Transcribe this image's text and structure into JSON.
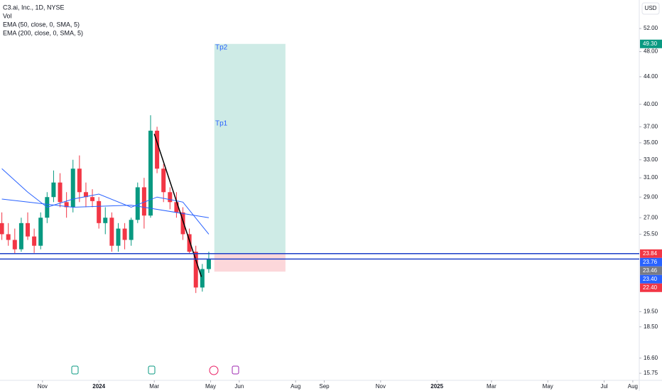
{
  "chart_data": {
    "type": "candlestick",
    "title": "C3.ai, Inc., 1D, NYSE",
    "indicators": [
      "Vol",
      "EMA (50, close, 0, SMA, 5)",
      "EMA (200, close, 0, SMA, 5)"
    ],
    "currency": "USD",
    "log": true,
    "ylim": [
      15.37,
      57.4
    ],
    "yticks": [
      {
        "value": 52,
        "label": "52.00"
      },
      {
        "value": 48,
        "label": "48.00"
      },
      {
        "value": 44,
        "label": "44.00"
      },
      {
        "value": 40,
        "label": "40.00"
      },
      {
        "value": 37,
        "label": "37.00"
      },
      {
        "value": 35,
        "label": "35.00"
      },
      {
        "value": 33,
        "label": "33.00"
      },
      {
        "value": 31,
        "label": "31.00"
      },
      {
        "value": 29,
        "label": "29.00"
      },
      {
        "value": 27,
        "label": "27.00"
      },
      {
        "value": 25.5,
        "label": "25.50"
      },
      {
        "value": 19.5,
        "label": "19.50"
      },
      {
        "value": 18.5,
        "label": "18.50"
      },
      {
        "value": 16.6,
        "label": "16.60"
      },
      {
        "value": 15.75,
        "label": "15.75"
      }
    ],
    "xlim": [
      "2023-09-16",
      "2025-08-08"
    ],
    "xticks": [
      {
        "value": "2023-11-01",
        "label": "Nov"
      },
      {
        "value": "2024-01-01",
        "label": "2024"
      },
      {
        "value": "2024-03-01",
        "label": "Mar"
      },
      {
        "value": "2024-05-01",
        "label": "May"
      },
      {
        "value": "2024-06-01",
        "label": "Jun"
      },
      {
        "value": "2024-08-01",
        "label": "Aug"
      },
      {
        "value": "2024-09-01",
        "label": "Sep"
      },
      {
        "value": "2024-11-01",
        "label": "Nov"
      },
      {
        "value": "2025-01-01",
        "label": "2025"
      },
      {
        "value": "2025-03-01",
        "label": "Mar"
      },
      {
        "value": "2025-05-01",
        "label": "May"
      },
      {
        "value": "2025-07-01",
        "label": "Jul"
      },
      {
        "value": "2025-08-01",
        "label": "Aug"
      }
    ],
    "up_color": "#089981",
    "down_color": "#f23645",
    "x": [
      "2023-09-18",
      "2023-09-25",
      "2023-10-02",
      "2023-10-09",
      "2023-10-16",
      "2023-10-23",
      "2023-10-30",
      "2023-11-06",
      "2023-11-13",
      "2023-11-20",
      "2023-11-27",
      "2023-12-04",
      "2023-12-11",
      "2023-12-18",
      "2023-12-25",
      "2024-01-01",
      "2024-01-08",
      "2024-01-15",
      "2024-01-22",
      "2024-01-29",
      "2024-02-05",
      "2024-02-12",
      "2024-02-19",
      "2024-02-26",
      "2024-03-04",
      "2024-03-11",
      "2024-03-18",
      "2024-03-25",
      "2024-04-01",
      "2024-04-08",
      "2024-04-15",
      "2024-04-22",
      "2024-04-29"
    ],
    "open": [
      26.5,
      25.5,
      25.0,
      24.2,
      26.5,
      25.3,
      24.5,
      27.0,
      29.0,
      30.5,
      28.5,
      28.0,
      32.0,
      29.5,
      29.0,
      28.6,
      26.5,
      27.0,
      24.5,
      26.0,
      25.0,
      26.8,
      30.0,
      27.2,
      36.5,
      32.0,
      29.5,
      28.5,
      27.5,
      25.5,
      24.0,
      21.2,
      22.6
    ],
    "high": [
      27.5,
      26.5,
      26.0,
      27.0,
      27.5,
      26.0,
      27.5,
      29.5,
      31.8,
      31.5,
      29.5,
      33.0,
      33.5,
      30.5,
      29.8,
      29.0,
      28.0,
      27.5,
      26.5,
      26.5,
      27.0,
      30.5,
      31.0,
      38.5,
      37.0,
      32.5,
      30.0,
      29.5,
      28.0,
      26.0,
      24.5,
      23.0,
      24.0
    ],
    "low": [
      25.0,
      24.5,
      23.8,
      24.0,
      25.0,
      23.9,
      24.2,
      26.5,
      28.5,
      28.0,
      27.0,
      27.5,
      28.5,
      28.0,
      28.0,
      26.0,
      25.5,
      24.0,
      24.0,
      24.2,
      24.5,
      26.5,
      26.0,
      27.0,
      31.5,
      28.5,
      27.8,
      27.0,
      25.0,
      23.8,
      20.8,
      20.9,
      22.3
    ],
    "close": [
      25.5,
      25.0,
      24.2,
      26.5,
      25.3,
      24.5,
      27.0,
      29.0,
      30.5,
      28.5,
      28.0,
      32.0,
      29.5,
      29.0,
      28.6,
      26.5,
      27.0,
      24.5,
      26.0,
      25.0,
      26.8,
      30.0,
      27.2,
      36.5,
      32.0,
      29.5,
      28.5,
      27.5,
      25.5,
      24.0,
      21.2,
      22.6,
      23.4
    ],
    "lines": [
      {
        "name": "EMA (50, close, 0, SMA, 5)",
        "color": "#2962ff",
        "x": [
          "2023-09-18",
          "2023-10-16",
          "2023-11-06",
          "2023-12-04",
          "2024-01-01",
          "2024-02-05",
          "2024-03-04",
          "2024-04-01",
          "2024-04-29"
        ],
        "values": [
          32.0,
          29.5,
          28.0,
          28.8,
          29.3,
          28.0,
          29.0,
          28.5,
          25.5
        ]
      },
      {
        "name": "EMA (200, close, 0, SMA, 5)",
        "color": "#2962ff",
        "x": [
          "2023-09-18",
          "2023-12-04",
          "2024-02-05",
          "2024-04-29"
        ],
        "values": [
          28.8,
          28.0,
          28.2,
          27.0
        ]
      }
    ],
    "trend_line": {
      "x": [
        "2024-03-01",
        "2024-04-21"
      ],
      "values": [
        36.1,
        22.0
      ]
    },
    "levels": [
      23.84,
      23.4
    ],
    "position": {
      "x": [
        "2024-05-05",
        "2024-07-21"
      ],
      "entry": 23.84,
      "target": 49.3,
      "stop": 22.4
    },
    "annotations": [
      "Tp2",
      "Tp1"
    ],
    "badges": [
      {
        "value": 49.3,
        "label": "49.30",
        "color": "#089981"
      },
      {
        "value": 23.84,
        "label": "23.84",
        "color": "#f23645"
      },
      {
        "value": 23.76,
        "label": "23.76",
        "color": "#2962ff"
      },
      {
        "value": 23.46,
        "label": "23.46",
        "color": "#787b86"
      },
      {
        "value": 23.4,
        "label": "23.40",
        "color": "#2962ff"
      },
      {
        "value": 22.4,
        "label": "22.40",
        "color": "#f23645"
      }
    ]
  }
}
